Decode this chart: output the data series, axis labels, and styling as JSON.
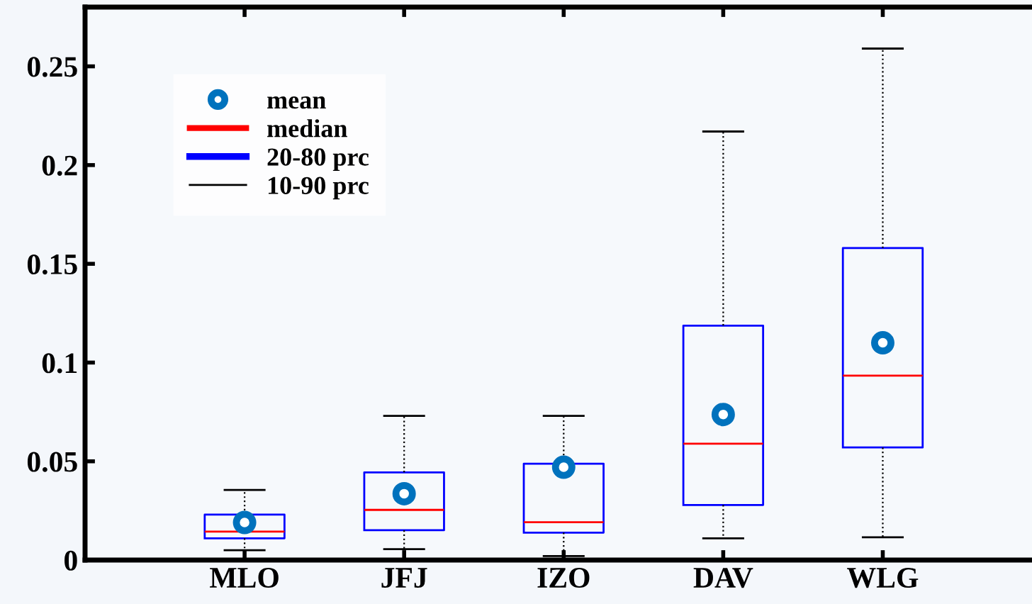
{
  "chart_data": {
    "type": "box",
    "categories": [
      "MLO",
      "JFJ",
      "IZO",
      "DAV",
      "WLG"
    ],
    "series": [
      {
        "color": "#0000ff",
        "boxes": [
          {
            "low": 0.005,
            "q1": 0.011,
            "median": 0.0144,
            "q3": 0.023,
            "high": 0.0355
          },
          {
            "low": 0.0055,
            "q1": 0.0151,
            "median": 0.0254,
            "q3": 0.0444,
            "high": 0.073
          },
          {
            "low": 0.002,
            "q1": 0.0139,
            "median": 0.0192,
            "q3": 0.0488,
            "high": 0.073
          },
          {
            "low": 0.011,
            "q1": 0.0279,
            "median": 0.0589,
            "q3": 0.1187,
            "high": 0.217
          },
          {
            "low": 0.0115,
            "q1": 0.057,
            "median": 0.0934,
            "q3": 0.158,
            "high": 0.259
          }
        ]
      },
      {
        "type": "scatter",
        "name": "mean",
        "color": "#0072bd",
        "x": [
          "MLO",
          "JFJ",
          "IZO",
          "DAV",
          "WLG"
        ],
        "values": [
          0.019,
          0.0336,
          0.047,
          0.0737,
          0.11
        ]
      }
    ],
    "annotations": [
      "median",
      "20-80 prc",
      "10-90 prc"
    ],
    "ylim": [
      0,
      0.28
    ],
    "yticks": [
      {
        "value": 0,
        "label": "0"
      },
      0.05,
      0.1,
      0.15,
      0.2,
      0.25
    ],
    "legend": "top left",
    "grid": false
  }
}
